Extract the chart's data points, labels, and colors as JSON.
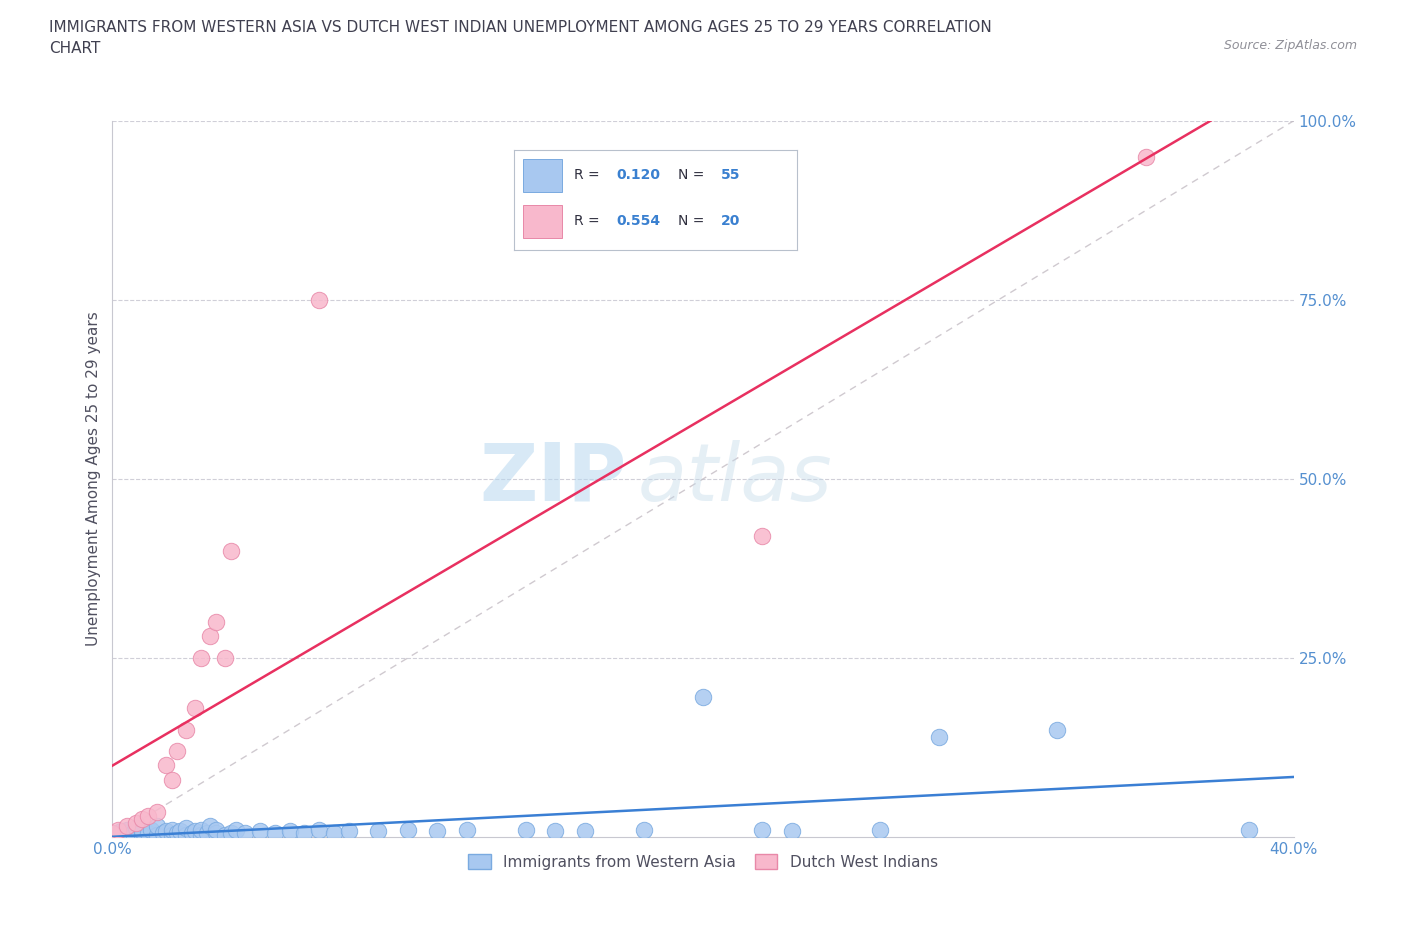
{
  "title": "IMMIGRANTS FROM WESTERN ASIA VS DUTCH WEST INDIAN UNEMPLOYMENT AMONG AGES 25 TO 29 YEARS CORRELATION\nCHART",
  "source": "Source: ZipAtlas.com",
  "ylabel": "Unemployment Among Ages 25 to 29 years",
  "xlim": [
    0.0,
    0.4
  ],
  "ylim": [
    0.0,
    1.0
  ],
  "blue_color": "#a8c8f0",
  "blue_edge_color": "#7aaae0",
  "pink_color": "#f8b8cc",
  "pink_edge_color": "#e888a8",
  "blue_line_color": "#3a7fd4",
  "pink_line_color": "#e83060",
  "diag_line_color": "#c0b8c0",
  "watermark_zip": "ZIP",
  "watermark_atlas": "atlas",
  "R1": "0.120",
  "N1": "55",
  "R2": "0.554",
  "N2": "20",
  "blue_scatter_x": [
    0.0,
    0.002,
    0.003,
    0.005,
    0.005,
    0.007,
    0.008,
    0.01,
    0.01,
    0.012,
    0.013,
    0.015,
    0.015,
    0.017,
    0.018,
    0.02,
    0.02,
    0.022,
    0.023,
    0.025,
    0.025,
    0.027,
    0.028,
    0.03,
    0.03,
    0.032,
    0.033,
    0.035,
    0.035,
    0.038,
    0.04,
    0.042,
    0.045,
    0.05,
    0.055,
    0.06,
    0.065,
    0.07,
    0.075,
    0.08,
    0.09,
    0.1,
    0.11,
    0.12,
    0.14,
    0.15,
    0.16,
    0.18,
    0.2,
    0.22,
    0.23,
    0.26,
    0.28,
    0.32,
    0.385
  ],
  "blue_scatter_y": [
    0.005,
    0.002,
    0.008,
    0.003,
    0.01,
    0.005,
    0.012,
    0.003,
    0.008,
    0.005,
    0.01,
    0.003,
    0.015,
    0.005,
    0.008,
    0.003,
    0.01,
    0.005,
    0.008,
    0.003,
    0.012,
    0.005,
    0.008,
    0.003,
    0.01,
    0.005,
    0.015,
    0.005,
    0.01,
    0.003,
    0.005,
    0.01,
    0.005,
    0.008,
    0.005,
    0.008,
    0.005,
    0.01,
    0.005,
    0.008,
    0.008,
    0.01,
    0.008,
    0.01,
    0.01,
    0.008,
    0.008,
    0.01,
    0.195,
    0.01,
    0.008,
    0.01,
    0.14,
    0.15,
    0.01
  ],
  "pink_scatter_x": [
    0.0,
    0.002,
    0.005,
    0.008,
    0.01,
    0.012,
    0.015,
    0.018,
    0.02,
    0.022,
    0.025,
    0.028,
    0.03,
    0.033,
    0.035,
    0.038,
    0.04,
    0.07,
    0.22,
    0.35
  ],
  "pink_scatter_y": [
    0.005,
    0.01,
    0.015,
    0.02,
    0.025,
    0.03,
    0.035,
    0.1,
    0.08,
    0.12,
    0.15,
    0.18,
    0.25,
    0.28,
    0.3,
    0.25,
    0.4,
    0.75,
    0.42,
    0.95
  ]
}
